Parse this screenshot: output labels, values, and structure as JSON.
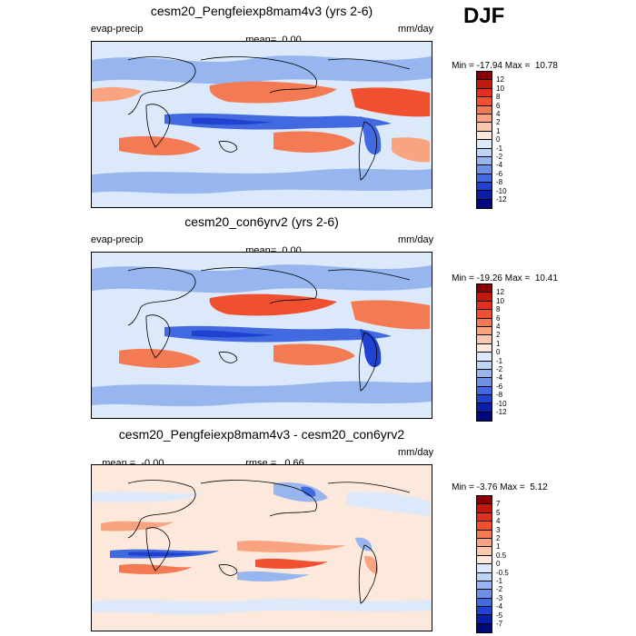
{
  "season": "DJF",
  "panels": [
    {
      "title": "cesm20_Pengfeiexp8mam4v3 (yrs 2-6)",
      "left_label": "evap-precip",
      "mean_label": "mean=",
      "mean_value": "0.00",
      "units": "mm/day",
      "min_label": "Min =",
      "min_value": "-17.94",
      "max_label": "Max =",
      "max_value": "10.78",
      "colorbar": {
        "ticks": [
          "12",
          "10",
          "8",
          "6",
          "4",
          "2",
          "1",
          "0",
          "-1",
          "-2",
          "-4",
          "-6",
          "-8",
          "-10",
          "-12"
        ],
        "colors": [
          "#8b0000",
          "#c1190b",
          "#e0301e",
          "#f05030",
          "#f37a52",
          "#f8a481",
          "#fac8ad",
          "#fde8dc",
          "#dce9fb",
          "#bdd4f6",
          "#97b5ef",
          "#6d90e8",
          "#416ae0",
          "#1f43d0",
          "#0a1fa8",
          "#00087a"
        ]
      }
    },
    {
      "title": "cesm20_con6yrv2 (yrs 2-6)",
      "left_label": "evap-precip",
      "mean_label": "mean=",
      "mean_value": "0.00",
      "units": "mm/day",
      "min_label": "Min =",
      "min_value": "-19.26",
      "max_label": "Max =",
      "max_value": "10.41",
      "colorbar": {
        "ticks": [
          "12",
          "10",
          "8",
          "6",
          "4",
          "2",
          "1",
          "0",
          "-1",
          "-2",
          "-4",
          "-6",
          "-8",
          "-10",
          "-12"
        ],
        "colors": [
          "#8b0000",
          "#c1190b",
          "#e0301e",
          "#f05030",
          "#f37a52",
          "#f8a481",
          "#fac8ad",
          "#fde8dc",
          "#dce9fb",
          "#bdd4f6",
          "#97b5ef",
          "#6d90e8",
          "#416ae0",
          "#1f43d0",
          "#0a1fa8",
          "#00087a"
        ]
      }
    },
    {
      "title": "cesm20_Pengfeiexp8mam4v3 - cesm20_con6yrv2",
      "left_label": "mean =",
      "mean_label": "rmse =",
      "mean_value": "0.66",
      "left_value": "-0.00",
      "units": "mm/day",
      "min_label": "Min =",
      "min_value": "-3.76",
      "max_label": "Max =",
      "max_value": "5.12",
      "colorbar": {
        "ticks": [
          "7",
          "5",
          "4",
          "3",
          "2",
          "1",
          "0.5",
          "0",
          "-0.5",
          "-1",
          "-2",
          "-3",
          "-4",
          "-5",
          "-7"
        ],
        "colors": [
          "#8b0000",
          "#c1190b",
          "#e0301e",
          "#f05030",
          "#f37a52",
          "#f8a481",
          "#fac8ad",
          "#fde8dc",
          "#dce9fb",
          "#bdd4f6",
          "#97b5ef",
          "#6d90e8",
          "#416ae0",
          "#1f43d0",
          "#0a1fa8",
          "#00087a"
        ]
      }
    }
  ]
}
